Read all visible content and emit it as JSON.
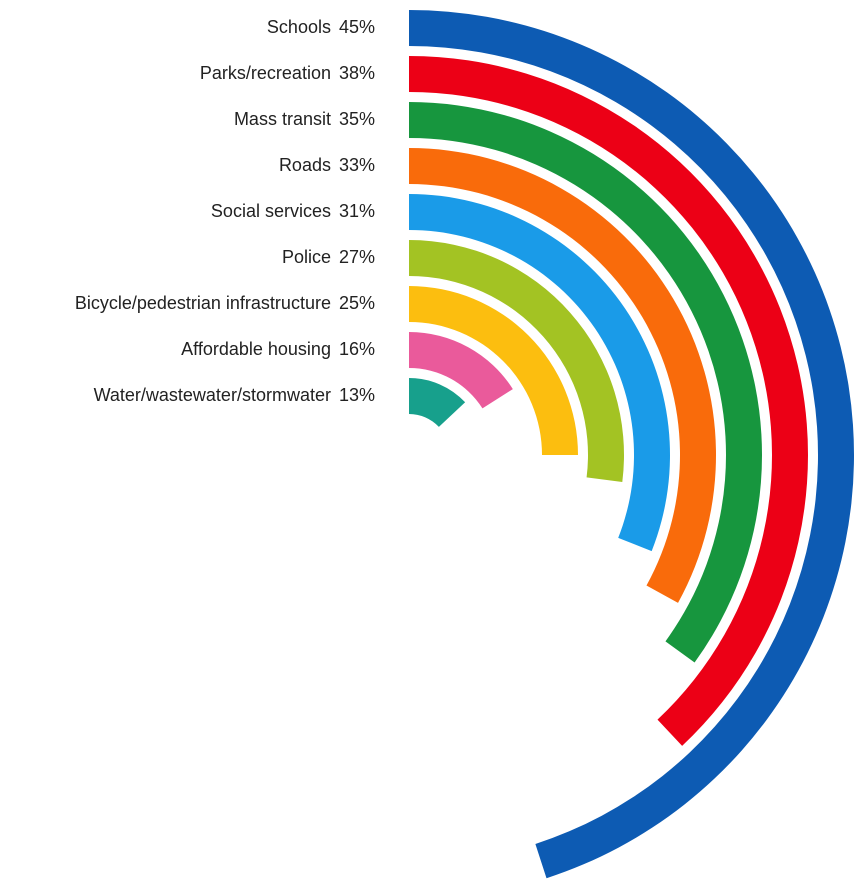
{
  "chart_data": {
    "type": "radial_bar",
    "categories": [
      "Schools",
      "Parks/recreation",
      "Mass transit",
      "Roads",
      "Social services",
      "Police",
      "Bicycle/pedestrian infrastructure",
      "Affordable housing",
      "Water/wastewater/stormwater"
    ],
    "values": [
      45,
      38,
      35,
      33,
      31,
      27,
      25,
      16,
      13
    ],
    "value_labels": [
      "45%",
      "38%",
      "35%",
      "33%",
      "31%",
      "27%",
      "25%",
      "16%",
      "13%"
    ],
    "colors": [
      "#0d5bb3",
      "#ec0016",
      "#17963e",
      "#f96b0b",
      "#1a9be8",
      "#a3c323",
      "#fcbe0f",
      "#ea5a9b",
      "#17a08c"
    ],
    "ylim": [
      0,
      100
    ]
  }
}
